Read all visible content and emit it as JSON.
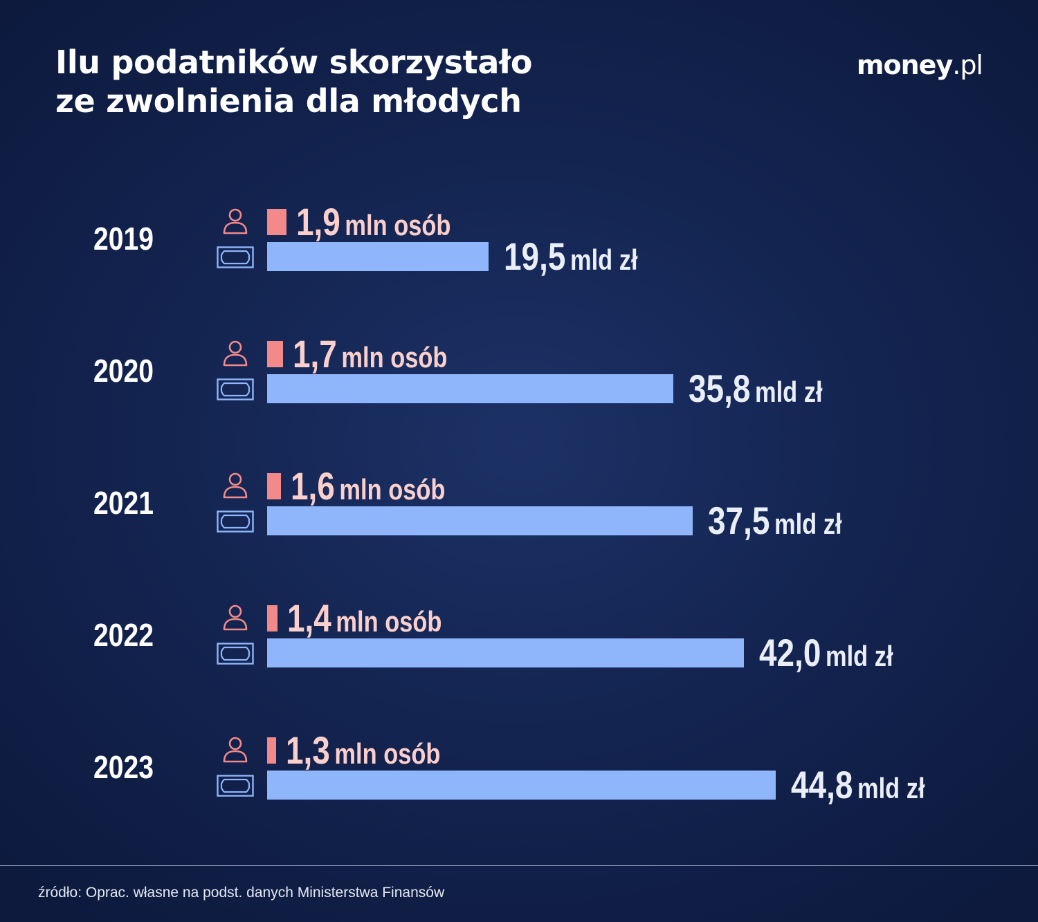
{
  "header": {
    "title_line1": "Ilu podatników skorzystało",
    "title_line2": "ze zwolnienia dla młodych",
    "logo_bold": "money",
    "logo_thin": ".pl"
  },
  "chart_data": {
    "type": "bar",
    "title": "Ilu podatników skorzystało ze zwolnienia dla młodych",
    "categories": [
      "2019",
      "2020",
      "2021",
      "2022",
      "2023"
    ],
    "series": [
      {
        "name": "",
        "values": [
          1.9,
          1.7,
          1.6,
          1.4,
          1.3
        ],
        "unit": "mln osób",
        "labels": [
          "1,9",
          "1,7",
          "1,6",
          "1,4",
          "1,3"
        ],
        "color": "#f28a8a",
        "label_color": "#fbd0cc",
        "icon": "person-icon"
      },
      {
        "name": "",
        "values": [
          19.5,
          35.8,
          37.5,
          42.0,
          44.8
        ],
        "unit": "mld zł",
        "labels": [
          "19,5",
          "35,8",
          "37,5",
          "42,0",
          "44,8"
        ],
        "color": "#8fb5fb",
        "label_color": "#e9eef8",
        "icon": "banknote-icon"
      }
    ],
    "orientation": "horizontal",
    "grid": false,
    "legend": "none"
  },
  "footer": {
    "source": "źródło: Oprac. własne na podst. danych Ministerstwa Finansów"
  }
}
